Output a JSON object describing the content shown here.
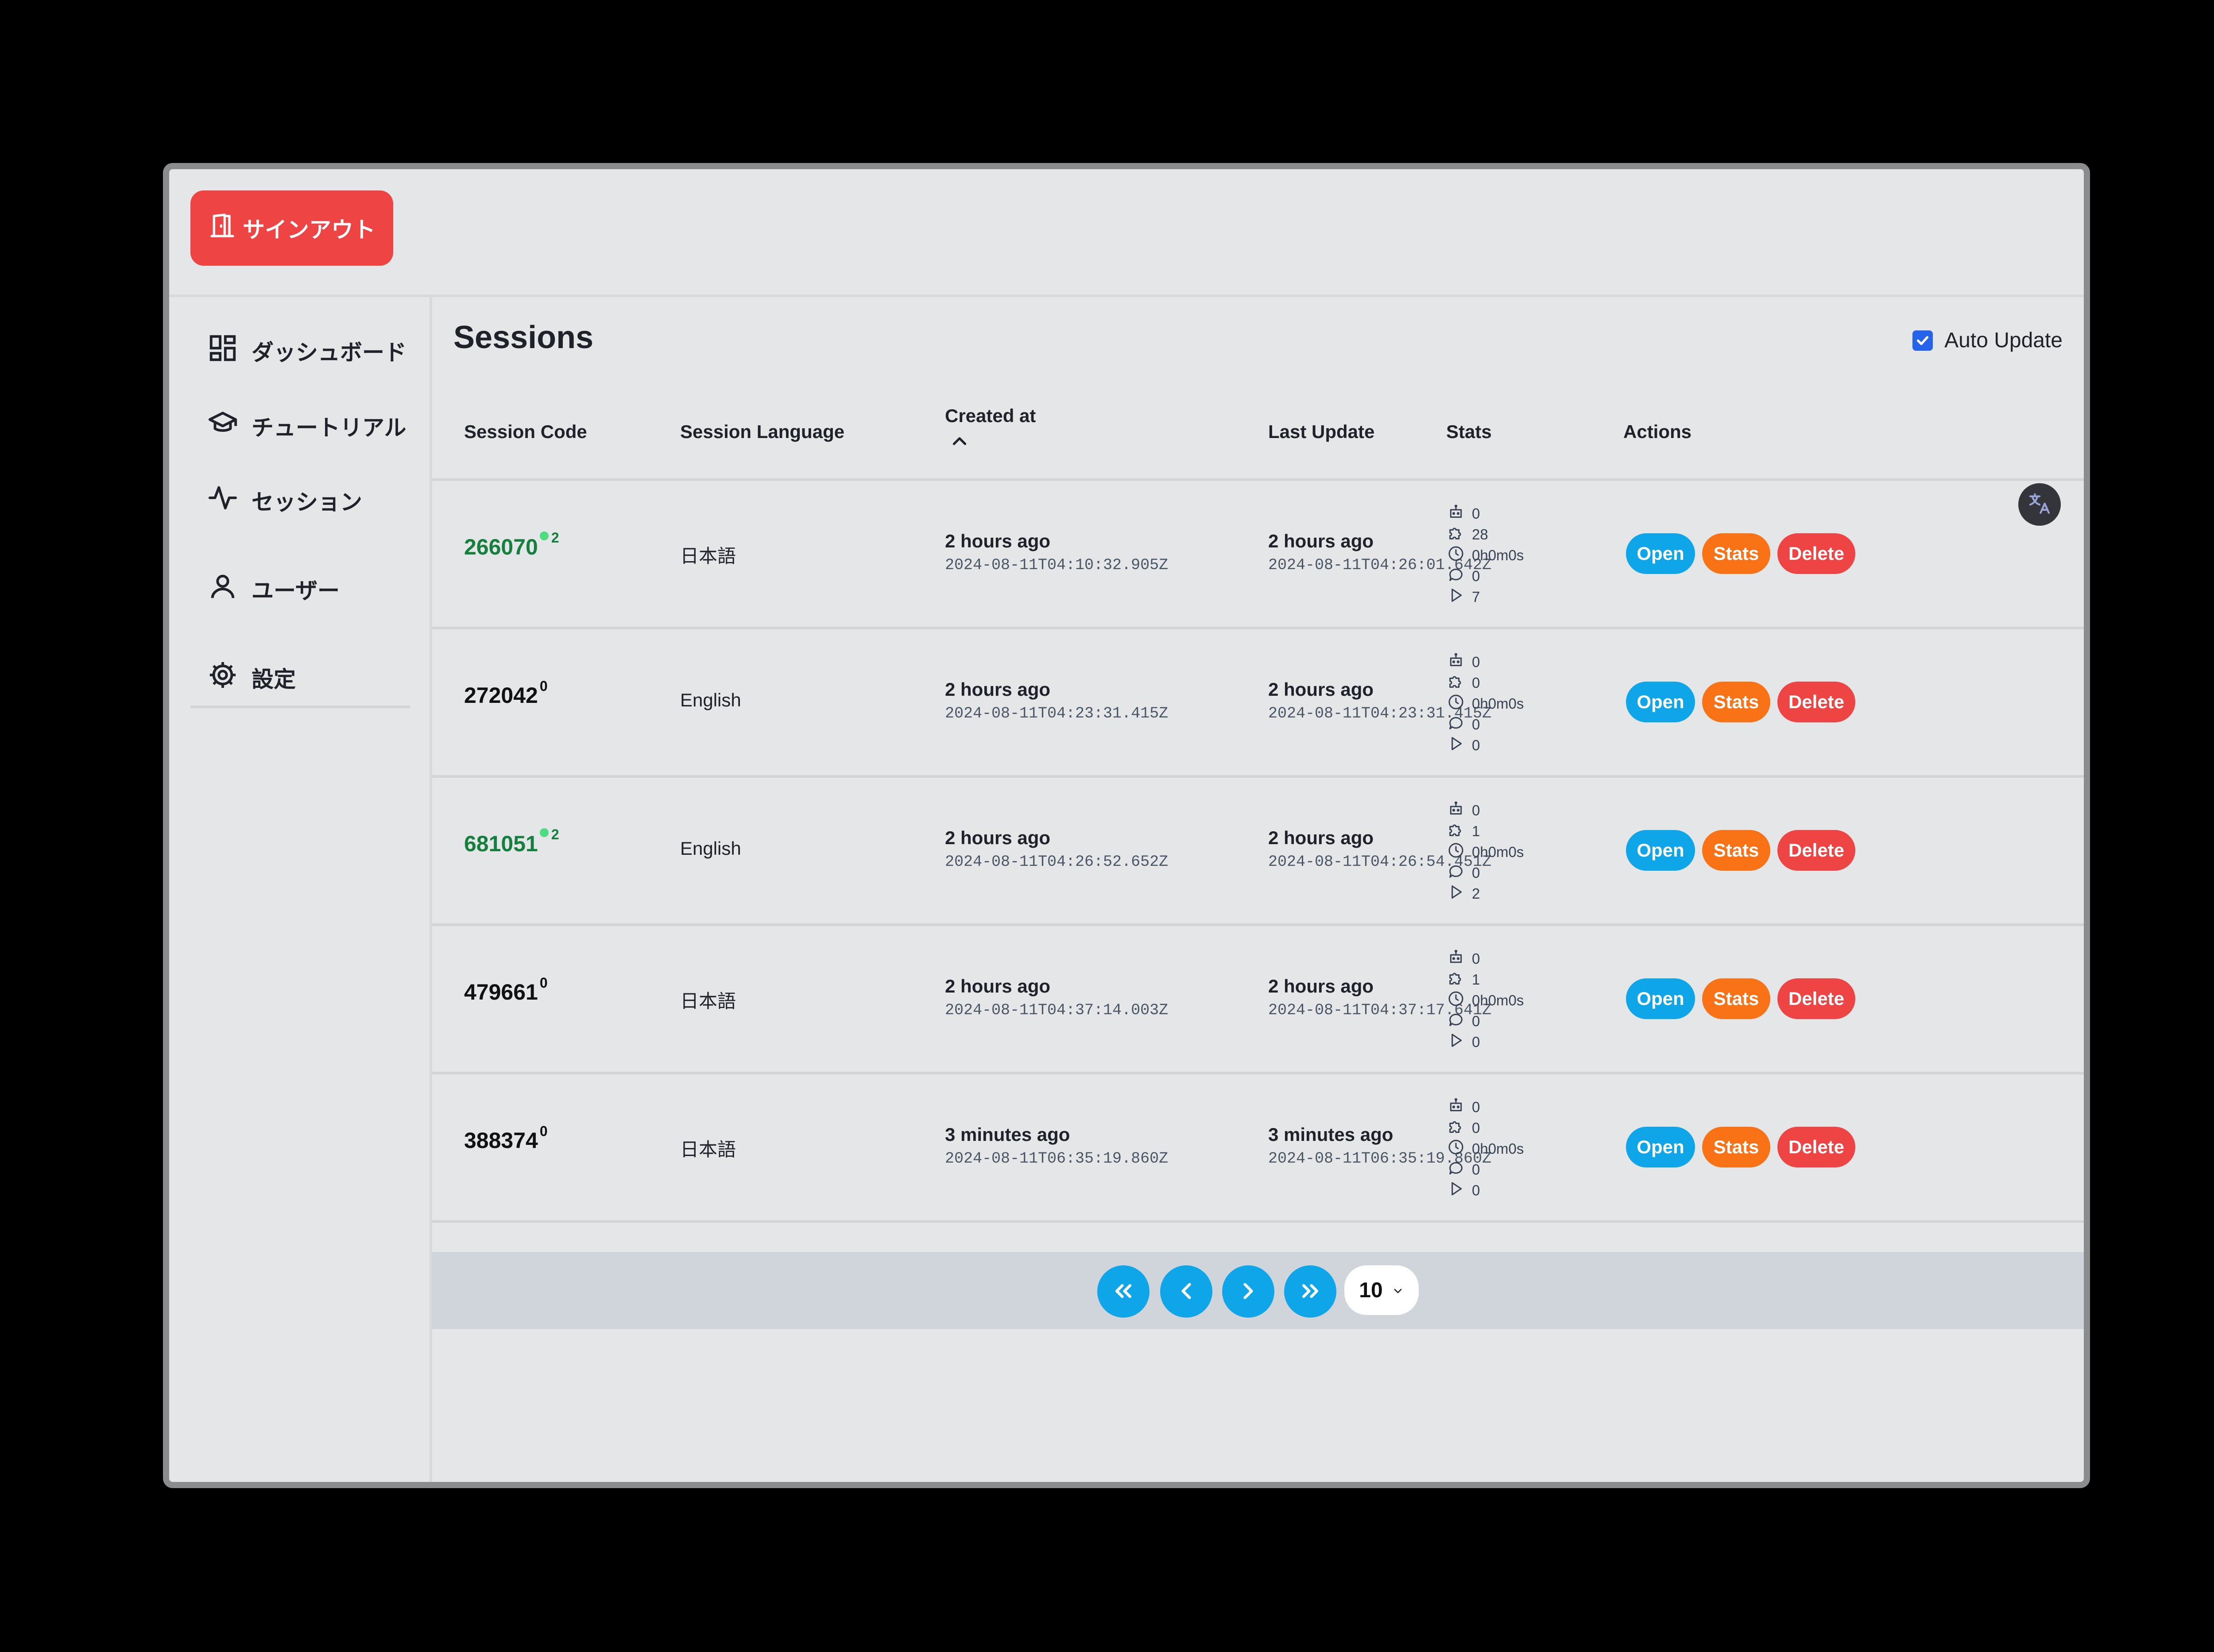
{
  "header": {
    "signout_label": "サインアウト"
  },
  "sidebar": {
    "items": [
      {
        "label": "ダッシュボード",
        "icon": "dashboard-icon"
      },
      {
        "label": "チュートリアル",
        "icon": "graduation-cap-icon"
      },
      {
        "label": "セッション",
        "icon": "activity-icon"
      },
      {
        "label": "ユーザー",
        "icon": "user-icon"
      },
      {
        "label": "設定",
        "icon": "gear-icon"
      }
    ]
  },
  "main": {
    "title": "Sessions",
    "auto_update_label": "Auto Update",
    "auto_update_checked": true
  },
  "table": {
    "columns": {
      "code": "Session Code",
      "language": "Session Language",
      "created": "Created at",
      "updated": "Last Update",
      "stats": "Stats",
      "actions": "Actions"
    },
    "sort": {
      "column": "created",
      "direction": "ascending"
    },
    "rows": [
      {
        "code": "266070",
        "count": "2",
        "live": true,
        "language": "日本語",
        "created_rel": "2 hours ago",
        "created_iso": "2024-08-11T04:10:32.905Z",
        "updated_rel": "2 hours ago",
        "updated_iso": "2024-08-11T04:26:01.642Z",
        "stats": [
          "0",
          "28",
          "0h0m0s",
          "0",
          "7"
        ]
      },
      {
        "code": "272042",
        "count": "0",
        "live": false,
        "language": "English",
        "created_rel": "2 hours ago",
        "created_iso": "2024-08-11T04:23:31.415Z",
        "updated_rel": "2 hours ago",
        "updated_iso": "2024-08-11T04:23:31.415Z",
        "stats": [
          "0",
          "0",
          "0h0m0s",
          "0",
          "0"
        ]
      },
      {
        "code": "681051",
        "count": "2",
        "live": true,
        "language": "English",
        "created_rel": "2 hours ago",
        "created_iso": "2024-08-11T04:26:52.652Z",
        "updated_rel": "2 hours ago",
        "updated_iso": "2024-08-11T04:26:54.451Z",
        "stats": [
          "0",
          "1",
          "0h0m0s",
          "0",
          "2"
        ]
      },
      {
        "code": "479661",
        "count": "0",
        "live": false,
        "language": "日本語",
        "created_rel": "2 hours ago",
        "created_iso": "2024-08-11T04:37:14.003Z",
        "updated_rel": "2 hours ago",
        "updated_iso": "2024-08-11T04:37:17.641Z",
        "stats": [
          "0",
          "1",
          "0h0m0s",
          "0",
          "0"
        ]
      },
      {
        "code": "388374",
        "count": "0",
        "live": false,
        "language": "日本語",
        "created_rel": "3 minutes ago",
        "created_iso": "2024-08-11T06:35:19.860Z",
        "updated_rel": "3 minutes ago",
        "updated_iso": "2024-08-11T06:35:19.860Z",
        "stats": [
          "0",
          "0",
          "0h0m0s",
          "0",
          "0"
        ]
      }
    ],
    "stat_icons": [
      "bot-icon",
      "puzzle-icon",
      "clock-icon",
      "message-icon",
      "play-icon"
    ],
    "actions": {
      "open": "Open",
      "stats": "Stats",
      "delete": "Delete"
    }
  },
  "pagination": {
    "page_size": "10",
    "buttons": [
      "first-page-icon",
      "previous-page-icon",
      "next-page-icon",
      "last-page-icon"
    ]
  },
  "colors": {
    "accent": "#0ea5e9",
    "live_code": "#15803d",
    "stats_button": "#f97316",
    "danger": "#ef4444"
  }
}
